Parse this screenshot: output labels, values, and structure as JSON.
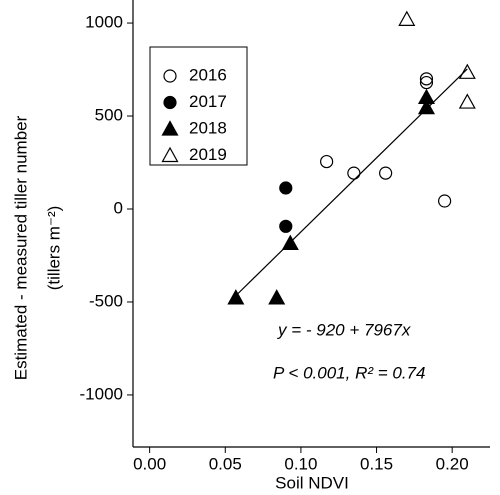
{
  "chart_data": {
    "type": "scatter",
    "x_label": "Soil NDVI",
    "y_label": [
      "Estimated - measured tiller number",
      "(tillers m⁻²)"
    ],
    "xlim": [
      -0.011,
      0.225
    ],
    "ylim": [
      -1280,
      1124
    ],
    "xticks": [
      {
        "value": 0,
        "label": "0.00"
      },
      0.05,
      {
        "value": 0.1,
        "label": "0.10"
      },
      0.15,
      {
        "value": 0.2,
        "label": "0.20"
      }
    ],
    "yticks": [
      -1000,
      -500,
      0,
      500,
      1000
    ],
    "series": [
      {
        "name": "2016",
        "marker": "circle",
        "filled": false,
        "color": "#000000",
        "x": [
          0.117,
          0.135,
          0.156,
          0.183,
          0.183,
          0.195
        ],
        "values": [
          255,
          193,
          193,
          700,
          680,
          43
        ]
      },
      {
        "name": "2017",
        "marker": "circle",
        "filled": true,
        "color": "#000000",
        "x": [
          0.09,
          0.09
        ],
        "values": [
          113,
          -93
        ]
      },
      {
        "name": "2018",
        "marker": "triangle",
        "filled": true,
        "color": "#000000",
        "x": [
          0.057,
          0.084,
          0.093,
          0.183,
          0.183
        ],
        "values": [
          -478,
          -478,
          -185,
          600,
          545
        ]
      },
      {
        "name": "2019",
        "marker": "triangle",
        "filled": false,
        "color": "#000000",
        "x": [
          0.17,
          0.21,
          0.21
        ],
        "values": [
          1020,
          735,
          575
        ]
      }
    ],
    "regression": {
      "intercept": -920,
      "slope": 7967,
      "x_range": [
        0.057,
        0.21
      ],
      "label": "y = - 920 + 7967x",
      "stats": "P < 0.001, R² = 0.74"
    }
  }
}
